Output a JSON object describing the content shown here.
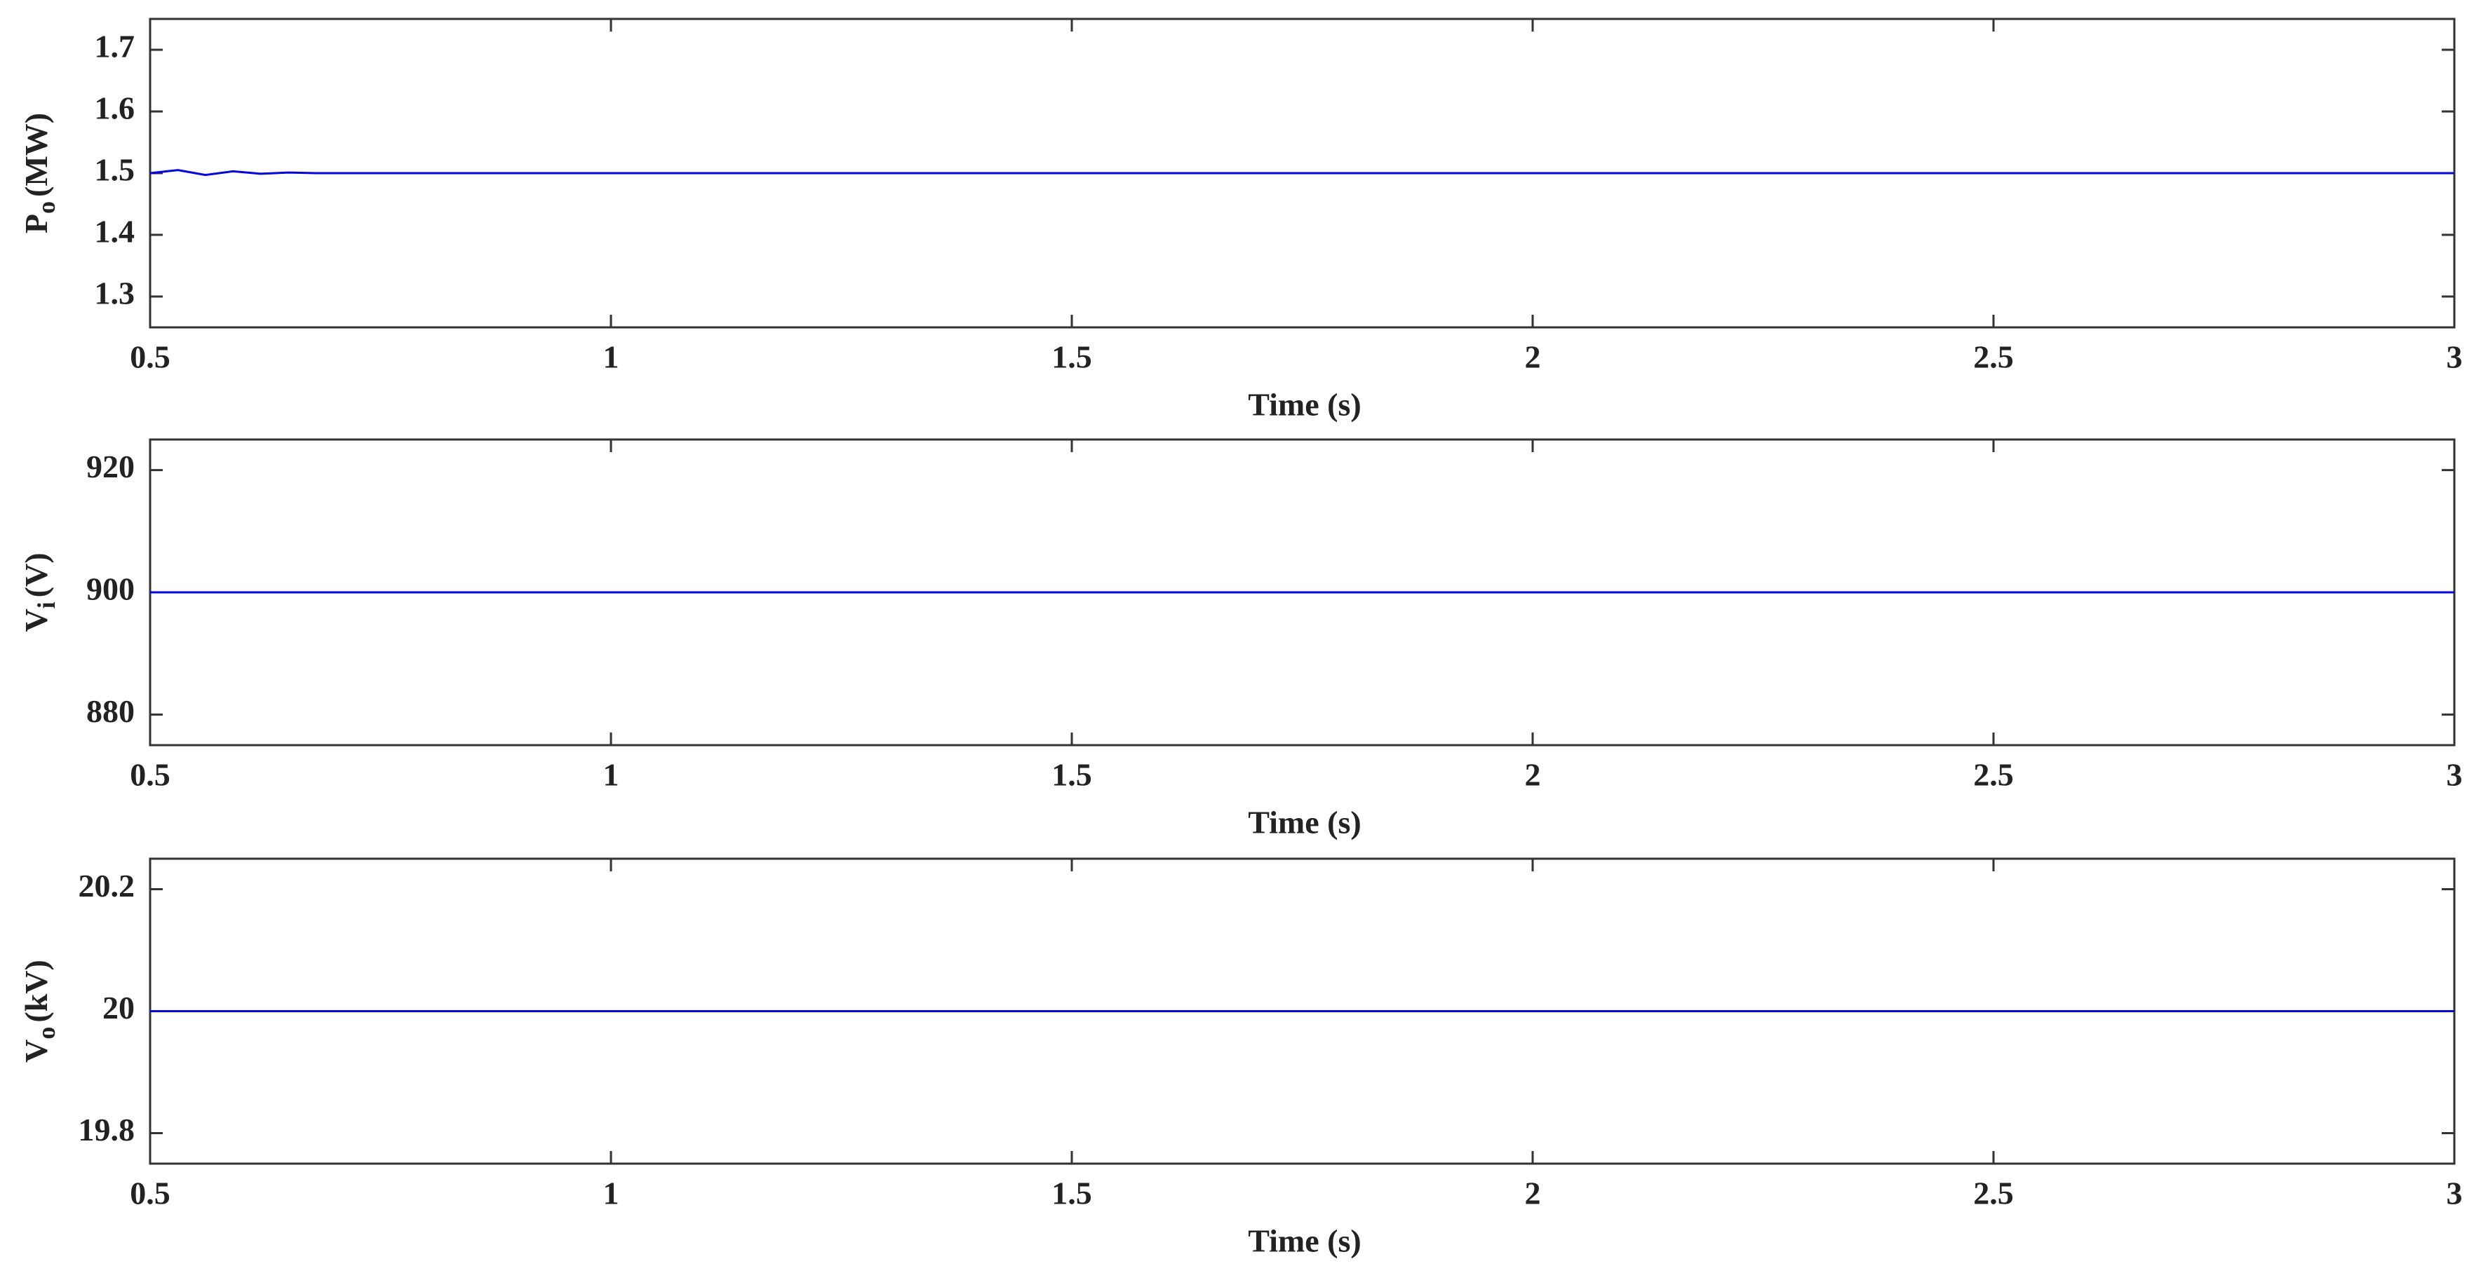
{
  "chart_data": [
    {
      "type": "line",
      "xlabel": "Time (s)",
      "ylabel": {
        "symbol": "P",
        "subscript": "o",
        "unit": "(MW)"
      },
      "x": [
        0.5,
        0.53,
        0.56,
        0.59,
        0.62,
        0.65,
        0.68,
        0.75,
        1,
        1.5,
        2,
        2.5,
        3
      ],
      "values": [
        1.5,
        1.505,
        1.497,
        1.503,
        1.499,
        1.501,
        1.5,
        1.5,
        1.5,
        1.5,
        1.5,
        1.5,
        1.5
      ],
      "color": "#0000ff",
      "xlim": [
        0.5,
        3
      ],
      "xticks": [
        0.5,
        1,
        1.5,
        2,
        2.5,
        3
      ],
      "ylim": [
        1.25,
        1.75
      ],
      "yticks": [
        1.3,
        1.4,
        1.5,
        1.6,
        1.7
      ]
    },
    {
      "type": "line",
      "xlabel": "Time (s)",
      "ylabel": {
        "symbol": "V",
        "subscript": "i",
        "unit": "(V)"
      },
      "x": [
        0.5,
        3
      ],
      "values": [
        900,
        900
      ],
      "color": "#0000ff",
      "xlim": [
        0.5,
        3
      ],
      "xticks": [
        0.5,
        1,
        1.5,
        2,
        2.5,
        3
      ],
      "ylim": [
        875,
        925
      ],
      "yticks": [
        880,
        900,
        920
      ]
    },
    {
      "type": "line",
      "xlabel": "Time (s)",
      "ylabel": {
        "symbol": "V",
        "subscript": "o",
        "unit": "(kV)"
      },
      "x": [
        0.5,
        3
      ],
      "values": [
        20,
        20
      ],
      "color": "#0000ff",
      "xlim": [
        0.5,
        3
      ],
      "xticks": [
        0.5,
        1,
        1.5,
        2,
        2.5,
        3
      ],
      "ylim": [
        19.75,
        20.25
      ],
      "yticks": [
        19.8,
        20,
        20.2
      ]
    }
  ]
}
